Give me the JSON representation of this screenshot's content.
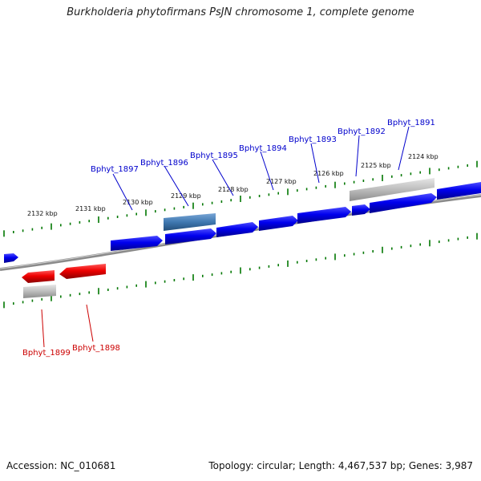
{
  "title": "Burkholderia phytofirmans PsJN chromosome 1, complete genome",
  "footer": {
    "accession_label": "Accession: NC_010681",
    "summary": "Topology: circular; Length: 4,467,537 bp; Genes: 3,987"
  },
  "colors": {
    "forward_gene": "#0000ee",
    "reverse_gene": "#ee0000",
    "selected_gene": "#3f78b0",
    "pseudo_block": "#b8b8b8",
    "backbone": "#8a8a8a",
    "tick": "#007700",
    "forward_label": "#0000cc",
    "reverse_label": "#cc0000"
  },
  "scale_ticks": [
    "2132 kbp",
    "2131 kbp",
    "2130 kbp",
    "2129 kbp",
    "2128 kbp",
    "2127 kbp",
    "2126 kbp",
    "2125 kbp",
    "2124 kbp"
  ],
  "forward_genes": [
    "Bphyt_1897",
    "Bphyt_1896",
    "Bphyt_1895",
    "Bphyt_1894",
    "Bphyt_1893",
    "Bphyt_1892",
    "Bphyt_1891"
  ],
  "reverse_genes": [
    "Bphyt_1899",
    "Bphyt_1898"
  ]
}
